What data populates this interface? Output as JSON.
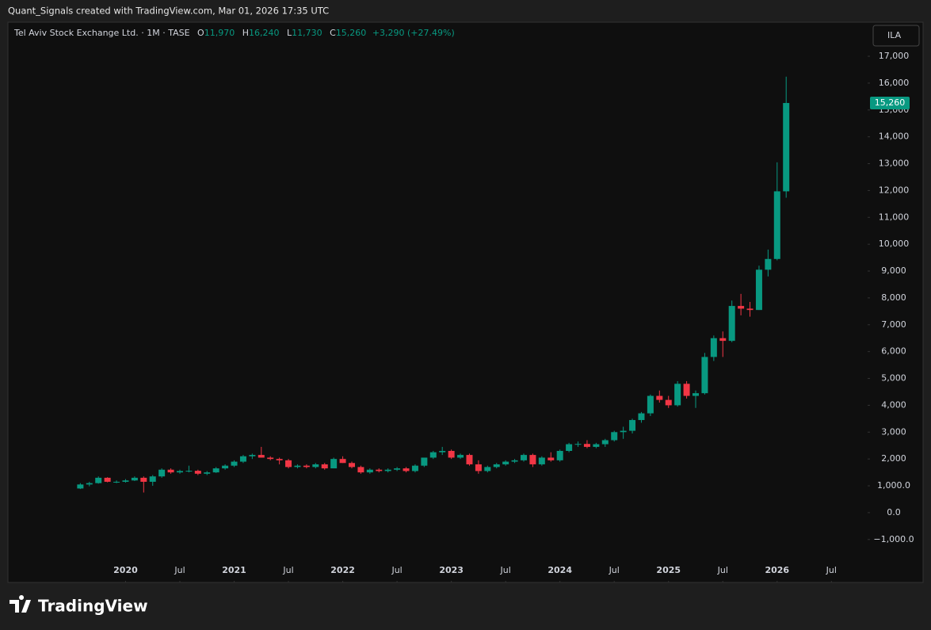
{
  "header": {
    "caption": "Quant_Signals created with TradingView.com, Mar 01, 2026 17:35 UTC",
    "brand": "TradingView"
  },
  "legend": {
    "symbol": "Tel Aviv Stock Exchange Ltd. · 1M · TASE",
    "o_label": "O",
    "o": "11,970",
    "h_label": "H",
    "h": "16,240",
    "l_label": "L",
    "l": "11,730",
    "c_label": "C",
    "c": "15,260",
    "change": "+3,290 (+27.49%)"
  },
  "currency": "ILA",
  "chart_data": {
    "type": "candlestick",
    "x": [
      "2019-08",
      "2019-09",
      "2019-10",
      "2019-11",
      "2019-12",
      "2020-01",
      "2020-02",
      "2020-03",
      "2020-04",
      "2020-05",
      "2020-06",
      "2020-07",
      "2020-08",
      "2020-09",
      "2020-10",
      "2020-11",
      "2020-12",
      "2021-01",
      "2021-02",
      "2021-03",
      "2021-04",
      "2021-05",
      "2021-06",
      "2021-07",
      "2021-08",
      "2021-09",
      "2021-10",
      "2021-11",
      "2021-12",
      "2022-01",
      "2022-02",
      "2022-03",
      "2022-04",
      "2022-05",
      "2022-06",
      "2022-07",
      "2022-08",
      "2022-09",
      "2022-10",
      "2022-11",
      "2022-12",
      "2023-01",
      "2023-02",
      "2023-03",
      "2023-04",
      "2023-05",
      "2023-06",
      "2023-07",
      "2023-08",
      "2023-09",
      "2023-10",
      "2023-11",
      "2023-12",
      "2024-01",
      "2024-02",
      "2024-03",
      "2024-04",
      "2024-05",
      "2024-06",
      "2024-07",
      "2024-08",
      "2024-09",
      "2024-10",
      "2024-11",
      "2024-12",
      "2025-01",
      "2025-02",
      "2025-03",
      "2025-04",
      "2025-05",
      "2025-06",
      "2025-07",
      "2025-08",
      "2025-09",
      "2025-10",
      "2025-11",
      "2025-12",
      "2026-01",
      "2026-02"
    ],
    "open": [
      900,
      1050,
      1100,
      1300,
      1150,
      1150,
      1200,
      1300,
      1150,
      1350,
      1600,
      1500,
      1550,
      1560,
      1450,
      1500,
      1650,
      1750,
      1900,
      2100,
      2150,
      2050,
      2000,
      1950,
      1700,
      1750,
      1700,
      1800,
      1650,
      2000,
      1850,
      1700,
      1500,
      1600,
      1550,
      1600,
      1650,
      1550,
      1750,
      2050,
      2250,
      2300,
      2050,
      2150,
      1800,
      1550,
      1700,
      1800,
      1900,
      1950,
      2150,
      1800,
      2050,
      1950,
      2300,
      2550,
      2560,
      2450,
      2550,
      2700,
      3000,
      3050,
      3450,
      3700,
      4350,
      4200,
      4000,
      4800,
      4350,
      4450,
      5800,
      6500,
      6400,
      7700,
      7600,
      7550,
      9050,
      9450,
      11970
    ],
    "high": [
      1100,
      1150,
      1350,
      1320,
      1200,
      1250,
      1350,
      1350,
      1400,
      1650,
      1650,
      1600,
      1750,
      1600,
      1550,
      1700,
      1800,
      1950,
      2150,
      2200,
      2450,
      2100,
      2050,
      2000,
      1800,
      1800,
      1850,
      1850,
      2050,
      2100,
      1900,
      1750,
      1650,
      1650,
      1650,
      1700,
      1700,
      1800,
      2050,
      2300,
      2450,
      2350,
      2200,
      2200,
      1950,
      1750,
      1850,
      1950,
      2000,
      2200,
      2200,
      2100,
      2250,
      2350,
      2600,
      2650,
      2700,
      2600,
      2750,
      3050,
      3200,
      3500,
      3750,
      4400,
      4550,
      4350,
      4900,
      4900,
      4550,
      5950,
      6600,
      6750,
      7900,
      8150,
      7850,
      9200,
      9800,
      13050,
      16240
    ],
    "low": [
      880,
      980,
      1080,
      1130,
      1100,
      1120,
      1180,
      750,
      1000,
      1300,
      1450,
      1450,
      1500,
      1400,
      1400,
      1480,
      1600,
      1700,
      1850,
      2000,
      2050,
      1950,
      1800,
      1650,
      1650,
      1650,
      1650,
      1600,
      1650,
      1850,
      1650,
      1450,
      1450,
      1500,
      1500,
      1550,
      1500,
      1500,
      1700,
      2000,
      2150,
      2000,
      2000,
      1750,
      1450,
      1500,
      1650,
      1750,
      1850,
      1900,
      1700,
      1750,
      1900,
      1900,
      2250,
      2450,
      2400,
      2400,
      2450,
      2650,
      2750,
      2950,
      3350,
      3600,
      4100,
      3900,
      3950,
      4250,
      3900,
      4400,
      5650,
      5800,
      6350,
      7350,
      7300,
      7550,
      8800,
      9400,
      11730
    ],
    "close": [
      1050,
      1100,
      1300,
      1150,
      1150,
      1200,
      1300,
      1150,
      1350,
      1600,
      1500,
      1550,
      1560,
      1450,
      1500,
      1650,
      1750,
      1900,
      2100,
      2150,
      2050,
      2000,
      1950,
      1700,
      1750,
      1700,
      1800,
      1650,
      2000,
      1850,
      1700,
      1500,
      1600,
      1550,
      1600,
      1650,
      1550,
      1750,
      2050,
      2250,
      2300,
      2050,
      2150,
      1800,
      1550,
      1700,
      1800,
      1900,
      1950,
      2150,
      1800,
      2050,
      1950,
      2300,
      2550,
      2560,
      2450,
      2550,
      2700,
      3000,
      3050,
      3450,
      3700,
      4350,
      4200,
      4000,
      4800,
      4350,
      4450,
      5800,
      6500,
      6400,
      7700,
      7600,
      7550,
      9050,
      9450,
      11970,
      15260
    ],
    "last_price_label": "15,260",
    "up_color": "#089981",
    "down_color": "#f23645",
    "xlim": [
      "2018-12",
      "2026-11"
    ],
    "xticks": [
      {
        "value": "2020-01",
        "label": "2020"
      },
      {
        "value": "2020-07",
        "label": "Jul"
      },
      {
        "value": "2021-01",
        "label": "2021"
      },
      {
        "value": "2021-07",
        "label": "Jul"
      },
      {
        "value": "2022-01",
        "label": "2022"
      },
      {
        "value": "2022-07",
        "label": "Jul"
      },
      {
        "value": "2023-01",
        "label": "2023"
      },
      {
        "value": "2023-07",
        "label": "Jul"
      },
      {
        "value": "2024-01",
        "label": "2024"
      },
      {
        "value": "2024-07",
        "label": "Jul"
      },
      {
        "value": "2025-01",
        "label": "2025"
      },
      {
        "value": "2025-07",
        "label": "Jul"
      },
      {
        "value": "2026-01",
        "label": "2026"
      },
      {
        "value": "2026-07",
        "label": "Jul"
      }
    ],
    "ylim": [
      -2600,
      18270
    ],
    "yticks": [
      {
        "value": 17000,
        "label": "17,000"
      },
      {
        "value": 16000,
        "label": "16,000"
      },
      {
        "value": 15000,
        "label": "15,000"
      },
      {
        "value": 14000,
        "label": "14,000"
      },
      {
        "value": 13000,
        "label": "13,000"
      },
      {
        "value": 12000,
        "label": "12,000"
      },
      {
        "value": 11000,
        "label": "11,000"
      },
      {
        "value": 10000,
        "label": "10,000"
      },
      {
        "value": 9000,
        "label": "9,000"
      },
      {
        "value": 8000,
        "label": "8,000"
      },
      {
        "value": 7000,
        "label": "7,000"
      },
      {
        "value": 6000,
        "label": "6,000"
      },
      {
        "value": 5000,
        "label": "5,000"
      },
      {
        "value": 4000,
        "label": "4,000"
      },
      {
        "value": 3000,
        "label": "3,000"
      },
      {
        "value": 2000,
        "label": "2,000"
      },
      {
        "value": 1000,
        "label": "1,000.0"
      },
      {
        "value": 0,
        "label": "0.0"
      },
      {
        "value": -1000,
        "label": "−1,000.0"
      }
    ],
    "grid": false
  }
}
